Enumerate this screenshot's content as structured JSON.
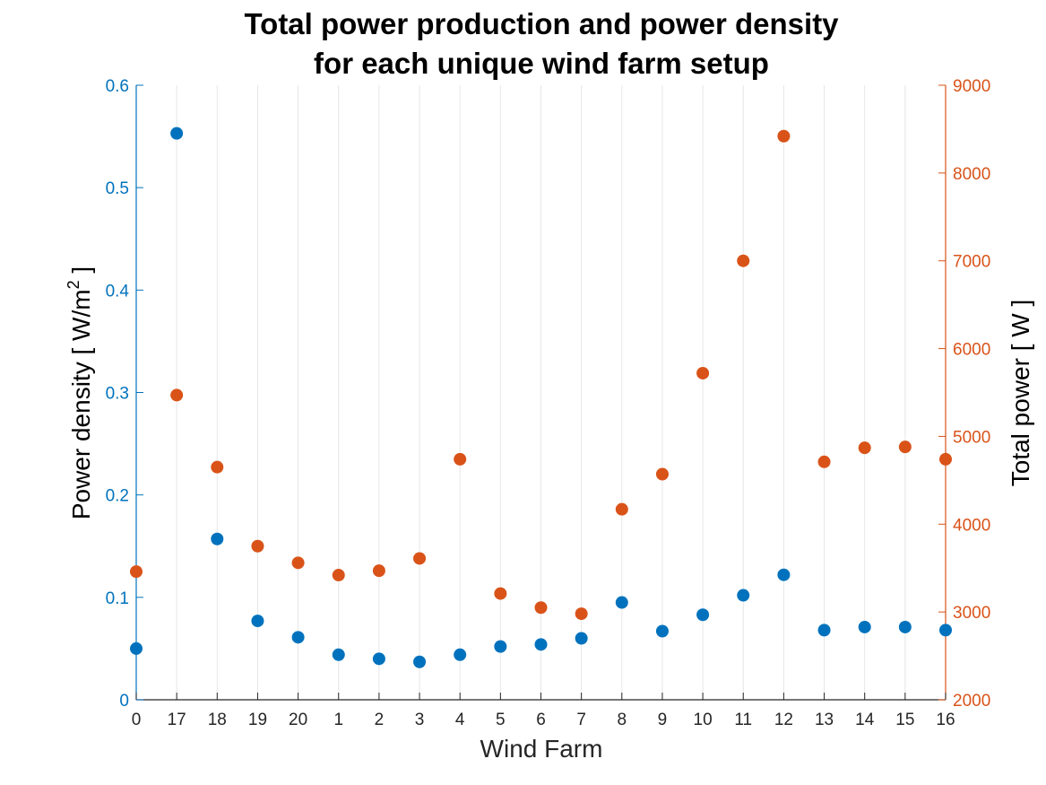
{
  "chart_data": {
    "type": "scatter",
    "title": "Total power production and power density",
    "subtitle": "for each unique wind farm setup",
    "xlabel": "Wind Farm",
    "ylabel_left": "Power density  [ W/m",
    "ylabel_left_superscript": "2",
    "ylabel_left_suffix": " ]",
    "ylabel_right": "Total power  [ W ]",
    "categories": [
      "0",
      "17",
      "18",
      "19",
      "20",
      "1",
      "2",
      "3",
      "4",
      "5",
      "6",
      "7",
      "8",
      "9",
      "10",
      "11",
      "12",
      "13",
      "14",
      "15",
      "16"
    ],
    "ylim_left": [
      0,
      0.6
    ],
    "ylim_right": [
      2000,
      9000
    ],
    "yticks_left": [
      "0",
      "0.1",
      "0.2",
      "0.3",
      "0.4",
      "0.5",
      "0.6"
    ],
    "yticks_right": [
      "2000",
      "3000",
      "4000",
      "5000",
      "6000",
      "7000",
      "8000",
      "9000"
    ],
    "grid": "vertical",
    "series": [
      {
        "axis": "left",
        "color": "#0072BD",
        "values": [
          0.05,
          0.553,
          0.157,
          0.077,
          0.061,
          0.044,
          0.04,
          0.037,
          0.044,
          0.052,
          0.054,
          0.06,
          0.095,
          0.067,
          0.083,
          0.102,
          0.122,
          0.068,
          0.071,
          0.071,
          0.068
        ]
      },
      {
        "axis": "right",
        "color": "#D95319",
        "values": [
          3460,
          5470,
          4650,
          3750,
          3560,
          3420,
          3470,
          3610,
          4740,
          3210,
          3050,
          2980,
          4170,
          4570,
          5720,
          7000,
          8420,
          4710,
          4870,
          4880,
          4740
        ]
      }
    ]
  },
  "colors": {
    "left_axis": "#0072BD",
    "right_axis": "#D95319",
    "axis_dark": "#262626",
    "grid": "#e6e6e6"
  }
}
